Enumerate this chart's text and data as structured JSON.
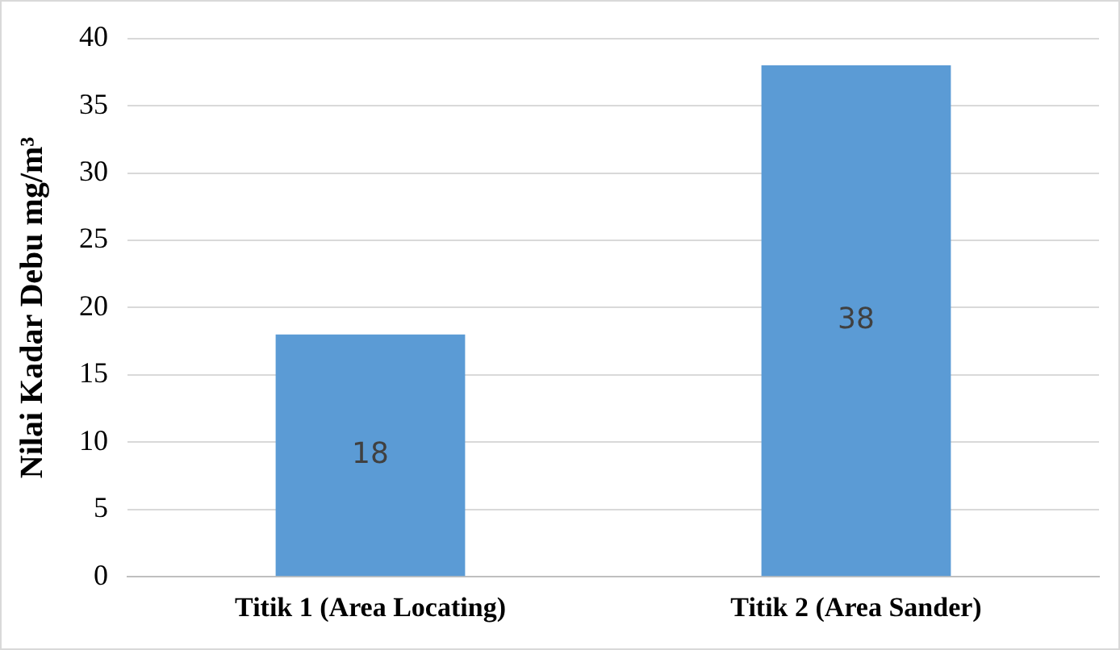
{
  "chart_data": {
    "type": "bar",
    "ylabel": "Nilai Kadar Debu mg/m³",
    "categories": [
      "Titik 1 (Area Locating)",
      "Titik 2 (Area Sander)"
    ],
    "values": [
      18,
      38
    ],
    "color": "#5b9bd5",
    "ylim": [
      0,
      40
    ],
    "yticks": [
      0,
      5,
      10,
      15,
      20,
      25,
      30,
      35,
      40
    ],
    "grid": "y",
    "data_labels": true
  }
}
